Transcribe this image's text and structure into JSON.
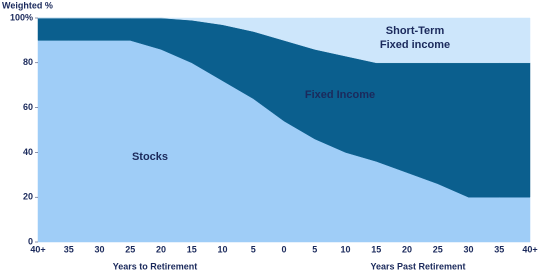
{
  "chart_data": {
    "type": "stacked_area",
    "ylabel": "Weighted %",
    "x_axis_labels": [
      "Years to Retirement",
      "Years Past Retirement"
    ],
    "categories": [
      "40+",
      "35",
      "30",
      "25",
      "20",
      "15",
      "10",
      "5",
      "0",
      "5",
      "10",
      "15",
      "20",
      "25",
      "30",
      "35",
      "40+"
    ],
    "series": [
      {
        "name": "Stocks",
        "color": "#9fcdf7",
        "values": [
          90,
          90,
          90,
          90,
          86,
          80,
          72,
          64,
          54,
          46,
          40,
          36,
          31,
          26,
          20,
          20,
          20
        ]
      },
      {
        "name": "Fixed Income",
        "color": "#0b5f8e",
        "values": [
          10,
          10,
          10,
          10,
          14,
          19,
          25,
          30,
          36,
          40,
          43,
          44,
          49,
          54,
          60,
          60,
          60
        ]
      },
      {
        "name": "Short-Term Fixed income",
        "color": "#cde6fb",
        "values": [
          0,
          0,
          0,
          0,
          0,
          1,
          3,
          6,
          10,
          14,
          17,
          20,
          20,
          20,
          20,
          20,
          20
        ]
      }
    ],
    "ylim": [
      0,
      100
    ],
    "yticks": [
      0,
      20,
      40,
      60,
      80,
      {
        "value": 100,
        "label": "100%"
      }
    ]
  }
}
